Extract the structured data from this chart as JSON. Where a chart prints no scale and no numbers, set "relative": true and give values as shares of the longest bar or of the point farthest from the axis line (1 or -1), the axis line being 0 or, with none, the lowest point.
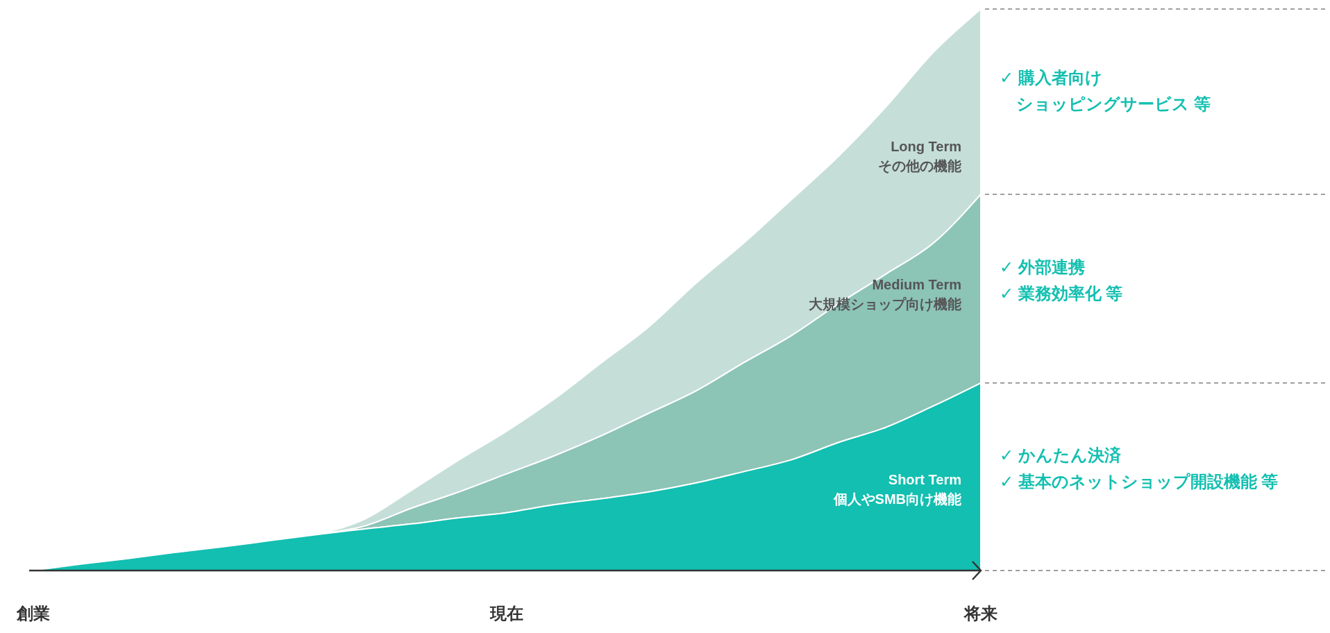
{
  "chart_data": {
    "type": "area",
    "stacked": true,
    "relative": true,
    "categories": [
      "創業",
      null,
      null,
      null,
      null,
      null,
      null,
      null,
      null,
      null,
      "現在",
      null,
      null,
      null,
      null,
      null,
      null,
      null,
      null,
      null,
      "将来"
    ],
    "series": [
      {
        "name": "Short Term\n個人やSMB向け機能",
        "color": "#12bfb0",
        "values": [
          0,
          0.011,
          0.021,
          0.032,
          0.042,
          0.053,
          0.064,
          0.074,
          0.083,
          0.094,
          0.103,
          0.117,
          0.128,
          0.14,
          0.156,
          0.176,
          0.197,
          0.228,
          0.255,
          0.293,
          0.334
        ]
      },
      {
        "name": "Medium Term\n大規模ショップ向け機能",
        "color": "#8cc4b6",
        "values": [
          0,
          0,
          0,
          0,
          0,
          0,
          0,
          0.005,
          0.028,
          0.046,
          0.069,
          0.087,
          0.112,
          0.14,
          0.164,
          0.194,
          0.221,
          0.247,
          0.273,
          0.29,
          0.336
        ]
      },
      {
        "name": "Long Term\nその他の機能",
        "color": "#c5dfd8",
        "values": [
          0,
          0,
          0,
          0,
          0,
          0,
          0,
          0.012,
          0.032,
          0.057,
          0.076,
          0.101,
          0.13,
          0.154,
          0.192,
          0.213,
          0.242,
          0.263,
          0.298,
          0.34,
          0.33
        ]
      }
    ],
    "annotations": [
      "✓ かんたん決済\n✓ 基本のネットショップ開設機能 等",
      "✓ 外部連携\n✓ 業務効率化 等",
      "✓ 購入者向け",
      "ショッピングサービス 等"
    ]
  }
}
